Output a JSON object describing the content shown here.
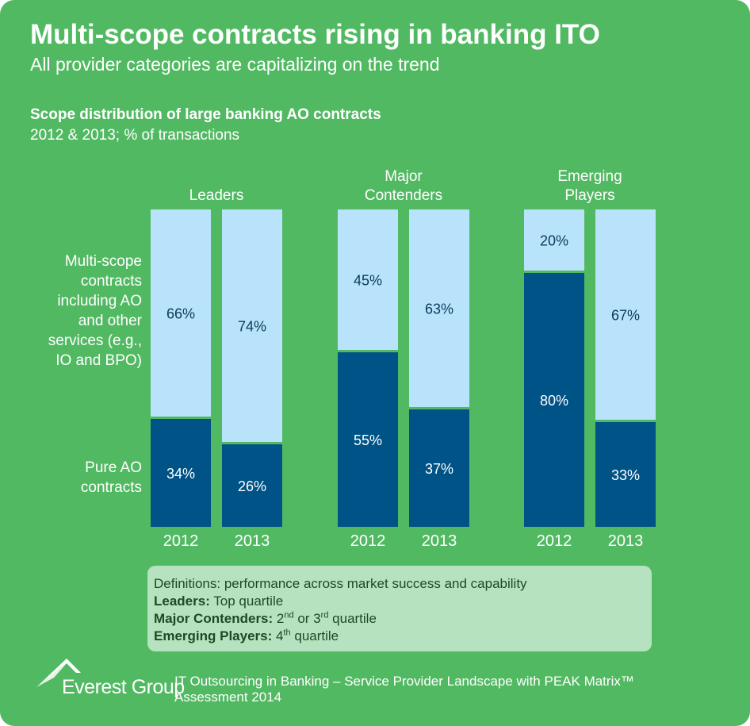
{
  "header": {
    "title": "Multi-scope contracts rising in banking ITO",
    "subtitle": "All provider categories are capitalizing on the trend"
  },
  "chart_data": {
    "type": "bar",
    "stacked": true,
    "title": "Scope distribution of large banking AO contracts",
    "subtitle": "2012 & 2013; % of transactions",
    "unit": "%",
    "categories": [
      "2012",
      "2013"
    ],
    "groups": [
      {
        "name": "Leaders",
        "label_lines": [
          "Leaders"
        ],
        "pure_ao": [
          34,
          26
        ],
        "multi_scope": [
          66,
          74
        ]
      },
      {
        "name": "Major Contenders",
        "label_lines": [
          "Major",
          "Contenders"
        ],
        "pure_ao": [
          55,
          37
        ],
        "multi_scope": [
          45,
          63
        ]
      },
      {
        "name": "Emerging Players",
        "label_lines": [
          "Emerging",
          "Players"
        ],
        "pure_ao": [
          80,
          33
        ],
        "multi_scope": [
          20,
          67
        ]
      }
    ],
    "series": [
      {
        "name": "Pure AO contracts",
        "label_lines": [
          "Pure AO",
          "contracts"
        ],
        "color": "#005386",
        "label_color": "#ffffff"
      },
      {
        "name": "Multi-scope contracts including AO and other services (e.g., IO and BPO)",
        "label_lines": [
          "Multi-scope",
          "contracts",
          "including AO",
          "and other",
          "services (e.g.,",
          "IO and BPO)"
        ],
        "color": "#b8e3fa",
        "label_color": "#0d3a5c"
      }
    ],
    "ylim": [
      0,
      100
    ]
  },
  "definitions": {
    "intro": "Definitions: performance across market success and capability",
    "leaders_term": "Leaders:",
    "leaders_text": " Top quartile",
    "major_term": "Major Contenders:",
    "major_text_a": " 2",
    "major_sup_a": "nd",
    "major_text_b": " or 3",
    "major_sup_b": "rd",
    "major_text_c": " quartile",
    "emerging_term": "Emerging Players:",
    "emerging_text_a": " 4",
    "emerging_sup_a": "th",
    "emerging_text_b": " quartile"
  },
  "footer": {
    "logo_text": "Everest Group",
    "logo_icon": "everest-mountain-icon",
    "source_line1": "IT Outsourcing in Banking – Service Provider Landscape with PEAK Matrix™",
    "source_line2": "Assessment 2014"
  },
  "colors": {
    "background": "#52b963",
    "pure_ao": "#005386",
    "multi_scope": "#b8e3fa",
    "definitions_box": "#b7e2bf"
  }
}
